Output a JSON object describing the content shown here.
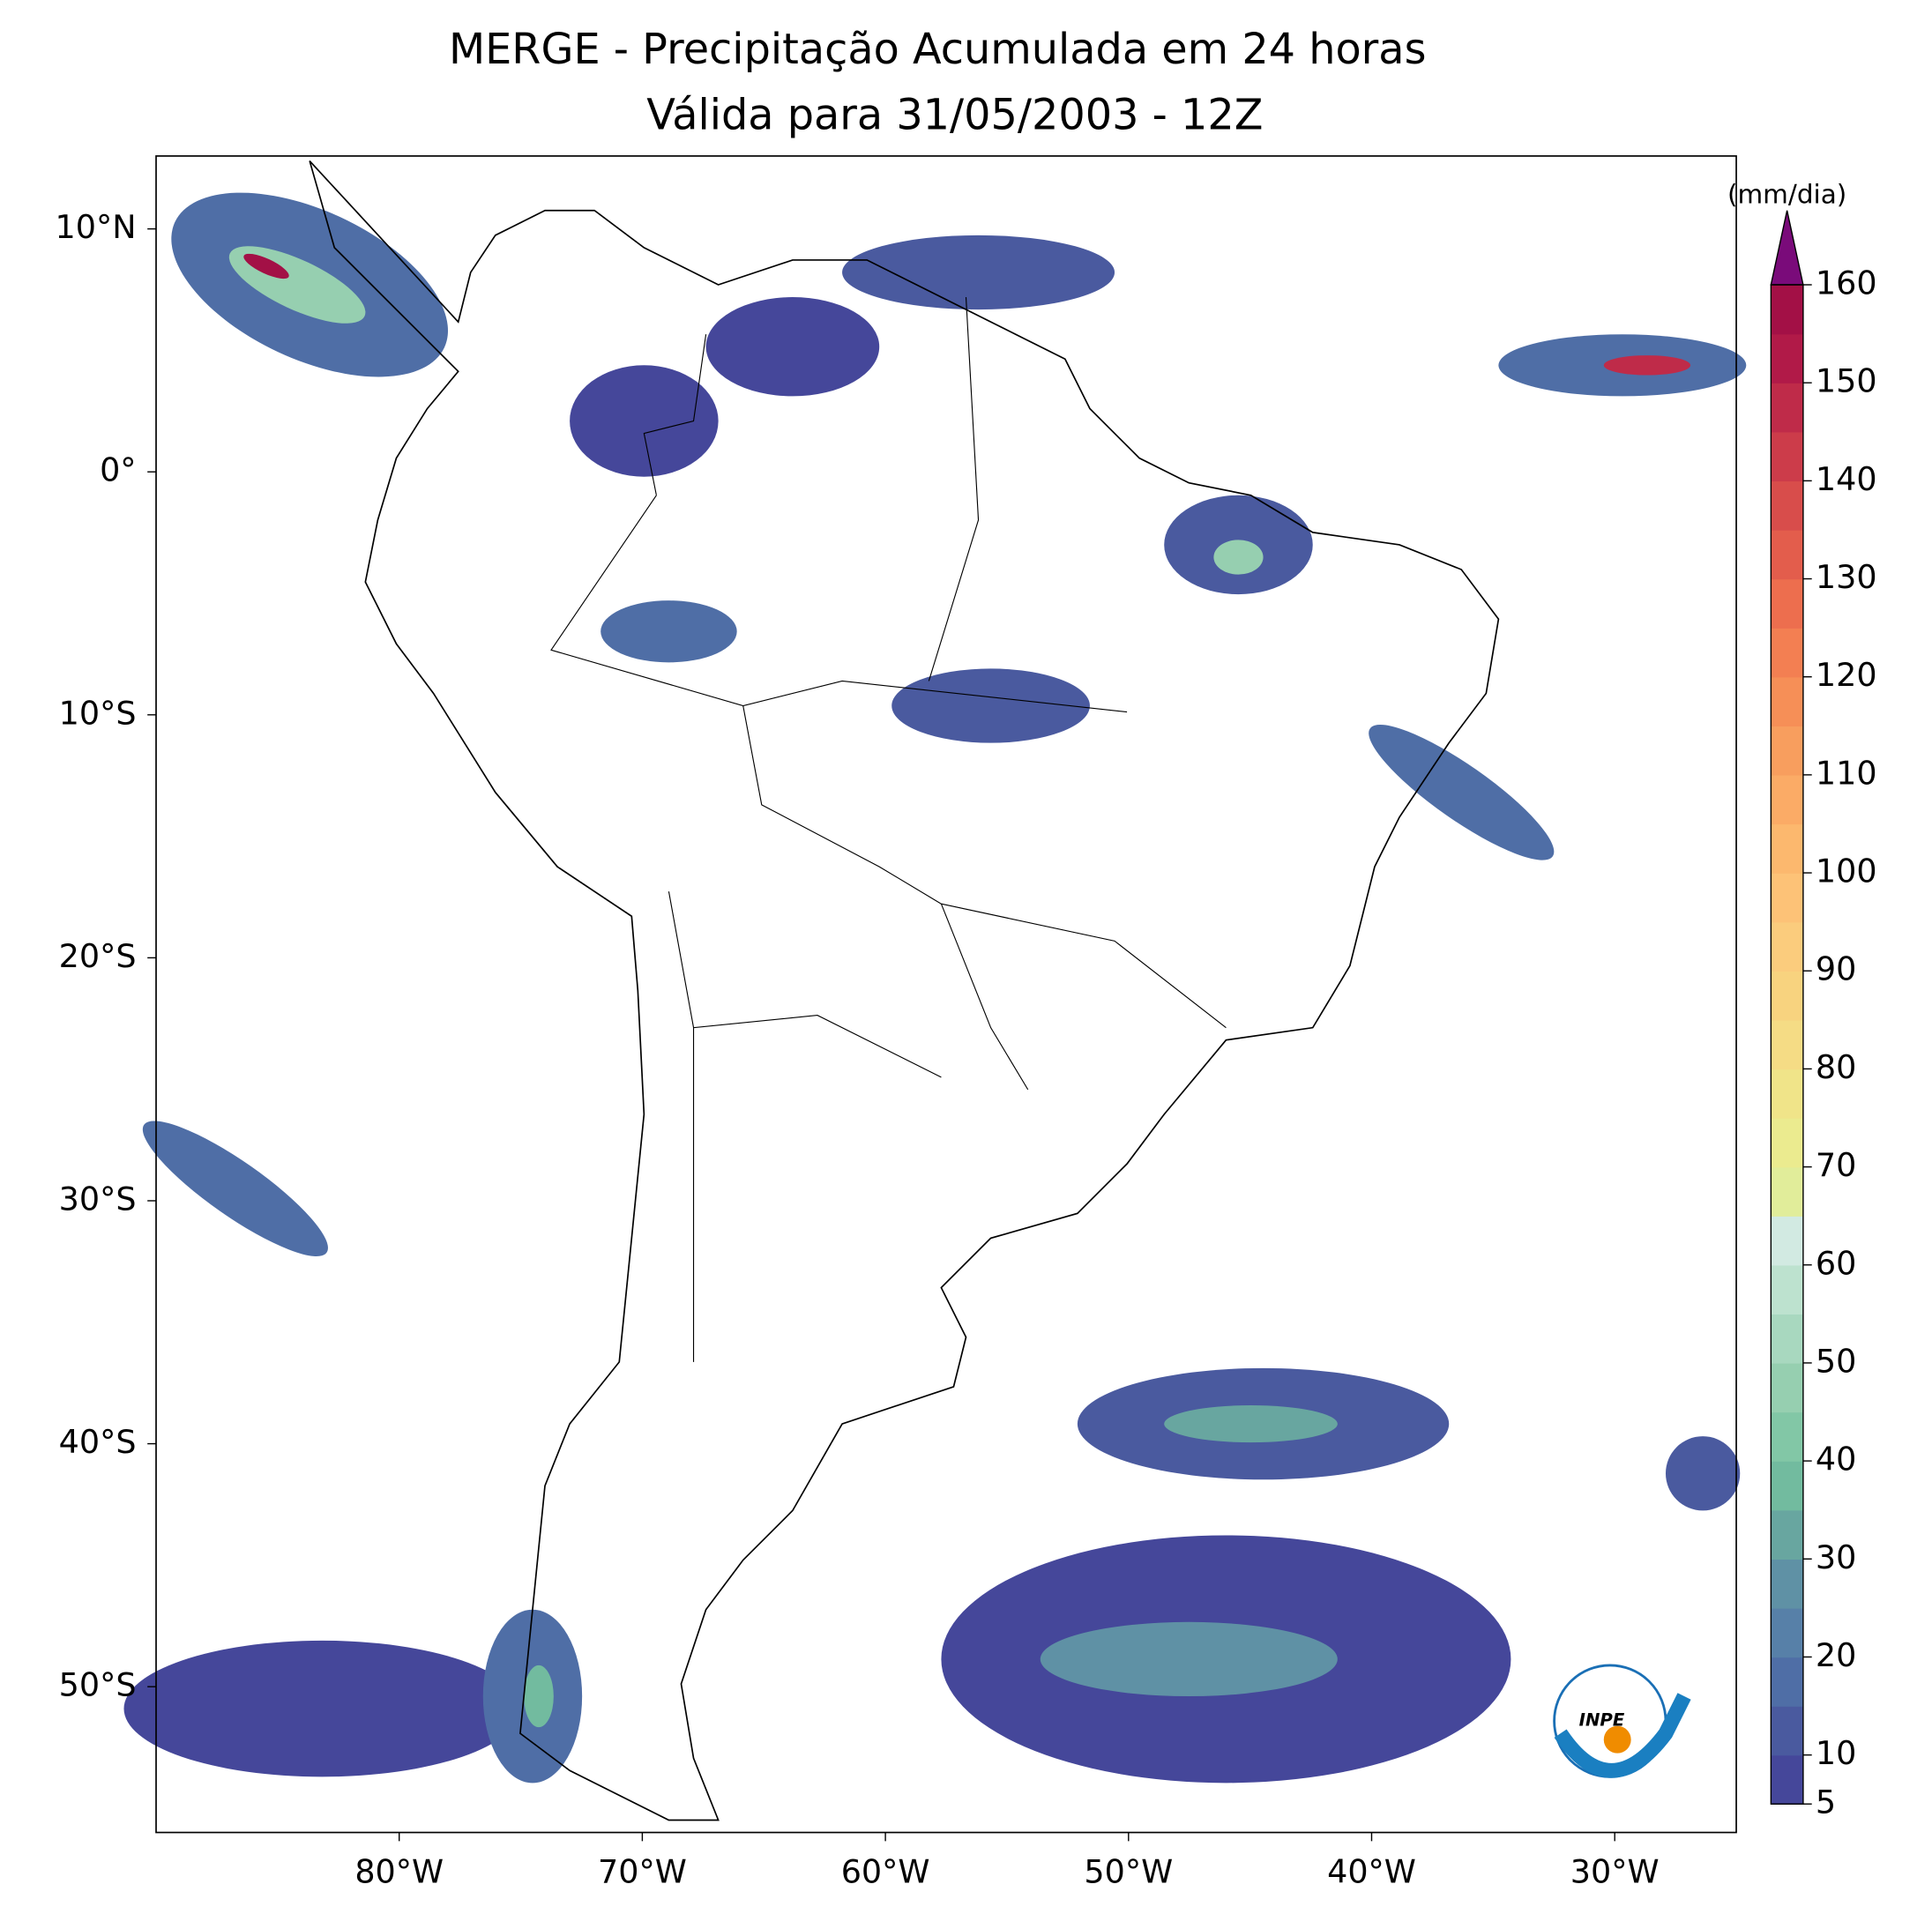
{
  "title": [
    "MERGE - Precipitação Acumulada em 24 horas",
    "Válida para 31/05/2003 - 12Z"
  ],
  "map": {
    "lon_range": [
      -90,
      -25
    ],
    "lat_range": [
      -56,
      13
    ],
    "lon_ticks": [
      {
        "value": -80,
        "label": "80°W"
      },
      {
        "value": -70,
        "label": "70°W"
      },
      {
        "value": -60,
        "label": "60°W"
      },
      {
        "value": -50,
        "label": "50°W"
      },
      {
        "value": -40,
        "label": "40°W"
      },
      {
        "value": -30,
        "label": "30°W"
      }
    ],
    "lat_ticks": [
      {
        "value": 10,
        "label": "10°N"
      },
      {
        "value": 0,
        "label": "0°"
      },
      {
        "value": -10,
        "label": "10°S"
      },
      {
        "value": -20,
        "label": "20°S"
      },
      {
        "value": -30,
        "label": "30°S"
      },
      {
        "value": -40,
        "label": "40°S"
      },
      {
        "value": -50,
        "label": "50°S"
      }
    ]
  },
  "colorbar": {
    "label": "(mm/dia)",
    "range": [
      5,
      160
    ],
    "ticks": [
      5,
      10,
      20,
      30,
      40,
      50,
      60,
      70,
      80,
      90,
      100,
      110,
      120,
      130,
      140,
      150,
      160
    ],
    "colors": [
      "#45479a",
      "#4a5a9f",
      "#4f6ea6",
      "#5780a8",
      "#5f91a5",
      "#68a6a0",
      "#72bb9f",
      "#82c7a6",
      "#96cfb0",
      "#a8d8bf",
      "#bde2cf",
      "#d2eae2",
      "#e1ed9a",
      "#ebeb8f",
      "#f0e489",
      "#f5dc85",
      "#f8d37f",
      "#fbcc7d",
      "#fdc277",
      "#fcb86e",
      "#fbab66",
      "#f89e5e",
      "#f68f57",
      "#f37f52",
      "#ed6e4e",
      "#e35d4c",
      "#d84d4b",
      "#cc3c4a",
      "#bf2b49",
      "#b11a48",
      "#a31046"
    ],
    "extend_color": "#7a0b7a"
  },
  "logo": "INPE"
}
